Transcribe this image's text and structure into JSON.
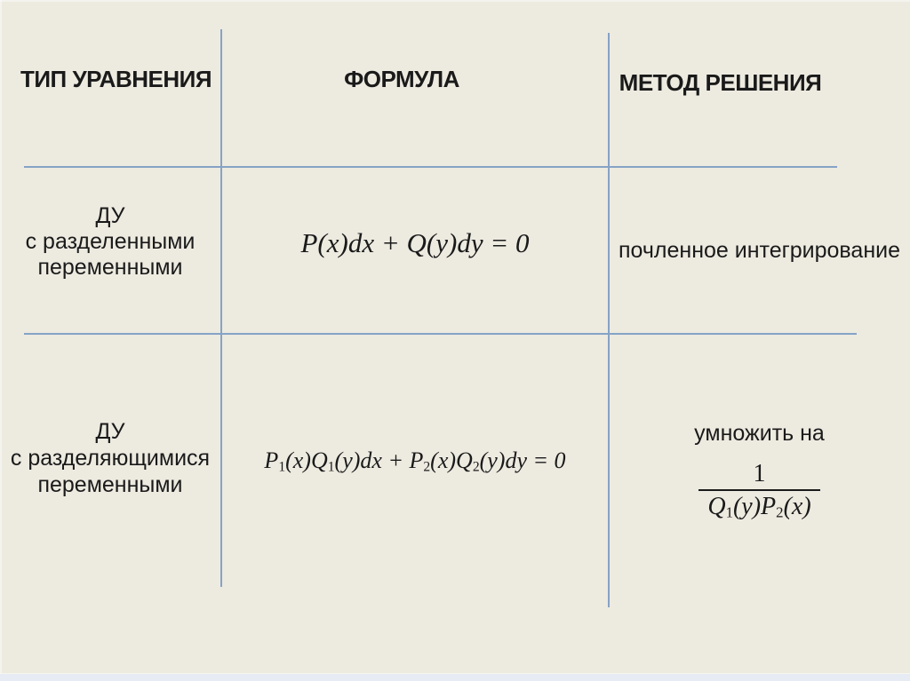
{
  "colors": {
    "background": "#edeae0",
    "divider_line": "#85a3c6",
    "text": "#1a1a1a",
    "footer_strip": "#e7ecf4"
  },
  "table": {
    "headers": {
      "type": "ТИП УРАВНЕНИЯ",
      "formula": "ФОРМУЛА",
      "method": "МЕТОД РЕШЕНИЯ"
    },
    "rows": [
      {
        "type_lines": [
          "ДУ",
          "с разделенными",
          "переменными"
        ],
        "formula": "P(x)dx + Q(y)dy = 0",
        "method": "почленное интегрирование"
      },
      {
        "type_lines": [
          "ДУ",
          "с разделяющимися",
          "переменными"
        ],
        "formula_parts": [
          "P",
          "1",
          "(x)Q",
          "1",
          "(y)dx + P",
          "2",
          "(x)Q",
          "2",
          "(y)dy = 0"
        ],
        "method_intro": "умножить на",
        "fraction": {
          "numerator": "1",
          "denominator_parts": [
            "Q",
            "1",
            "(y)P",
            "2",
            "(x)"
          ]
        }
      }
    ]
  }
}
